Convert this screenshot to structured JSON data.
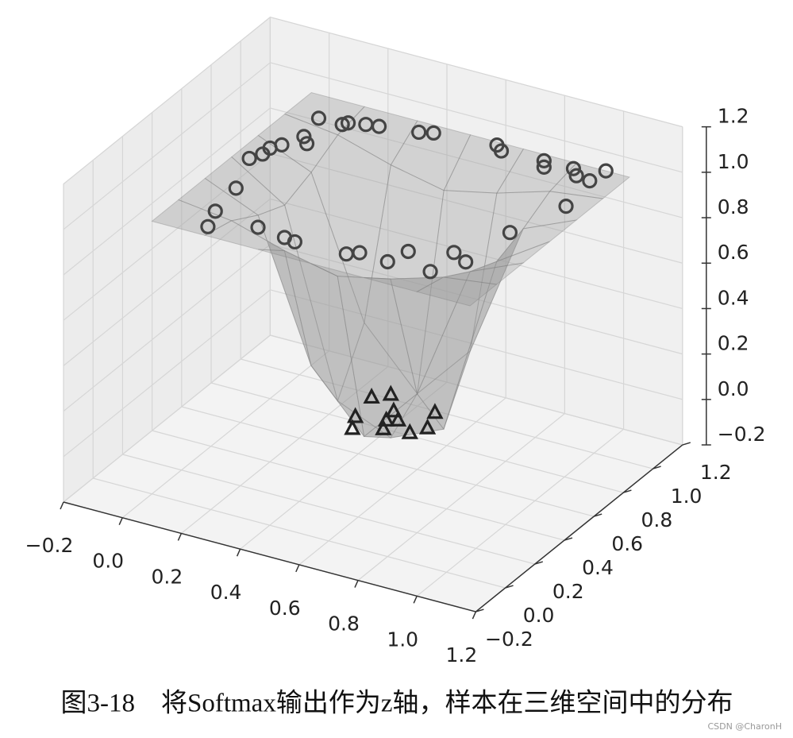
{
  "chart_data": {
    "type": "scatter3d",
    "caption": "图3-18　将Softmax输出作为z轴，样本在三维空间中的分布",
    "watermark": "CSDN @CharonH",
    "xlim": [
      -0.2,
      1.2
    ],
    "ylim": [
      -0.2,
      1.2
    ],
    "zlim": [
      -0.2,
      1.2
    ],
    "xticks": [
      {
        "value": -0.2,
        "label": "−0.2"
      },
      {
        "value": 0,
        "label": "0.0"
      },
      0.2,
      0.4,
      0.6,
      0.8,
      {
        "value": 1,
        "label": "1.0"
      },
      1.2
    ],
    "yticks": [
      {
        "value": -0.2,
        "label": "−0.2"
      },
      {
        "value": 0,
        "label": "0.0"
      },
      0.2,
      0.4,
      0.6,
      0.8,
      {
        "value": 1,
        "label": "1.0"
      },
      1.2
    ],
    "zticks": [
      {
        "value": -0.2,
        "label": "−0.2"
      },
      {
        "value": 0,
        "label": "0.0"
      },
      0.2,
      0.4,
      0.6,
      0.8,
      {
        "value": 1,
        "label": "1.0"
      },
      1.2
    ],
    "grid": true,
    "surface": {
      "color": "#9a9a9a",
      "x": [
        0,
        0.18,
        0.36,
        0.54,
        0.72,
        0.9,
        1.08
      ],
      "y": [
        0,
        0.18,
        0.36,
        0.54,
        0.72,
        0.9,
        1.08
      ],
      "z": [
        [
          1,
          1,
          1,
          1,
          1,
          1,
          1
        ],
        [
          1,
          0.97,
          0.9,
          0.85,
          0.9,
          0.97,
          1
        ],
        [
          1,
          0.9,
          0.3,
          0.05,
          0.3,
          0.9,
          1
        ],
        [
          1,
          0.85,
          0.05,
          -0.05,
          0.05,
          0.85,
          1
        ],
        [
          1,
          0.9,
          0.3,
          0.05,
          0.3,
          0.9,
          1
        ],
        [
          1,
          0.97,
          0.9,
          0.85,
          0.9,
          0.97,
          1
        ],
        [
          1,
          1,
          1,
          1,
          1,
          1,
          1
        ]
      ]
    },
    "series": [
      {
        "marker": "circle",
        "color": "#444444",
        "x": [
          0.1,
          0.18,
          0.19,
          0.24,
          0.28,
          0.4,
          0.44,
          0.12,
          0.15,
          0.09,
          0.07,
          0.07,
          0.05,
          0.64,
          0.67,
          0.81,
          0.83,
          0.91,
          0.94,
          0.99,
          1.0,
          0.11,
          0.13,
          0.16,
          0.29,
          0.39,
          0.43,
          0.6,
          0.63,
          0.73,
          0.75,
          0.87,
          0.87,
          0.93,
          0.95,
          1.01
        ],
        "y": [
          0.93,
          0.93,
          0.95,
          0.97,
          0.98,
          1.01,
          1.03,
          0.79,
          0.75,
          0.7,
          0.66,
          0.61,
          0.56,
          1.06,
          1.03,
          1.04,
          1.0,
          1.04,
          1.0,
          0.99,
          1.08,
          0.35,
          0.17,
          0.06,
          0.14,
          0.12,
          0.11,
          0.12,
          0.15,
          0.14,
          0.24,
          0.15,
          0.31,
          0.27,
          0.53,
          0.79
        ],
        "z": [
          1,
          1,
          1,
          1,
          1,
          1,
          1,
          1,
          1,
          1,
          1,
          1,
          1,
          1,
          1,
          1,
          1,
          1,
          1,
          1,
          1,
          1,
          1,
          1,
          1,
          1,
          1,
          1,
          1,
          1,
          1,
          1,
          1,
          1,
          1,
          1
        ]
      },
      {
        "marker": "triangle",
        "color": "#222222",
        "x": [
          0.4,
          0.44,
          0.5,
          0.42,
          0.45,
          0.51,
          0.54,
          0.53,
          0.61,
          0.61,
          0.64
        ],
        "y": [
          0.69,
          0.74,
          0.64,
          0.54,
          0.46,
          0.57,
          0.59,
          0.51,
          0.53,
          0.7,
          0.59
        ],
        "z": [
          0,
          0,
          0,
          0,
          0,
          0,
          0,
          0,
          0,
          0,
          0
        ]
      }
    ]
  }
}
